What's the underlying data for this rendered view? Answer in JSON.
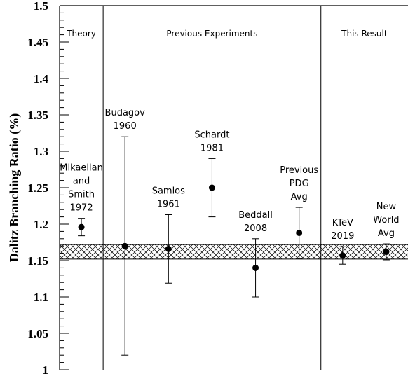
{
  "chart_data": {
    "type": "scatter",
    "ylabel": "Dalitz Branching Ratio (%)",
    "ylim": [
      1.0,
      1.5
    ],
    "yticks": [
      "1",
      "1.05",
      "1.1",
      "1.15",
      "1.2",
      "1.25",
      "1.3",
      "1.35",
      "1.4",
      "1.45",
      "1.5"
    ],
    "xlim": [
      0,
      8
    ],
    "sections": [
      {
        "label": "Theory",
        "from": 0,
        "to": 1
      },
      {
        "label": "Previous Experiments",
        "from": 1,
        "to": 6
      },
      {
        "label": "This Result",
        "from": 6,
        "to": 8
      }
    ],
    "band": {
      "low": 1.152,
      "high": 1.172
    },
    "points": [
      {
        "label": [
          "Mikaelian",
          "and",
          "Smith",
          "1972"
        ],
        "x": 0.5,
        "y": 1.196,
        "err_low": 0.012,
        "err_high": 0.012
      },
      {
        "label": [
          "Budagov",
          "1960"
        ],
        "x": 1.5,
        "y": 1.17,
        "err_low": 0.15,
        "err_high": 0.15
      },
      {
        "label": [
          "Samios",
          "1961"
        ],
        "x": 2.5,
        "y": 1.166,
        "err_low": 0.047,
        "err_high": 0.047
      },
      {
        "label": [
          "Schardt",
          "1981"
        ],
        "x": 3.5,
        "y": 1.25,
        "err_low": 0.04,
        "err_high": 0.04
      },
      {
        "label": [
          "Beddall",
          "2008"
        ],
        "x": 4.5,
        "y": 1.14,
        "err_low": 0.04,
        "err_high": 0.04
      },
      {
        "label": [
          "Previous",
          "PDG",
          "Avg"
        ],
        "x": 5.5,
        "y": 1.188,
        "err_low": 0.035,
        "err_high": 0.035
      },
      {
        "label": [
          "KTeV",
          "2019"
        ],
        "x": 6.5,
        "y": 1.157,
        "err_low": 0.012,
        "err_high": 0.012
      },
      {
        "label": [
          "New",
          "World",
          "Avg"
        ],
        "x": 7.5,
        "y": 1.162,
        "err_low": 0.011,
        "err_high": 0.011
      }
    ]
  }
}
